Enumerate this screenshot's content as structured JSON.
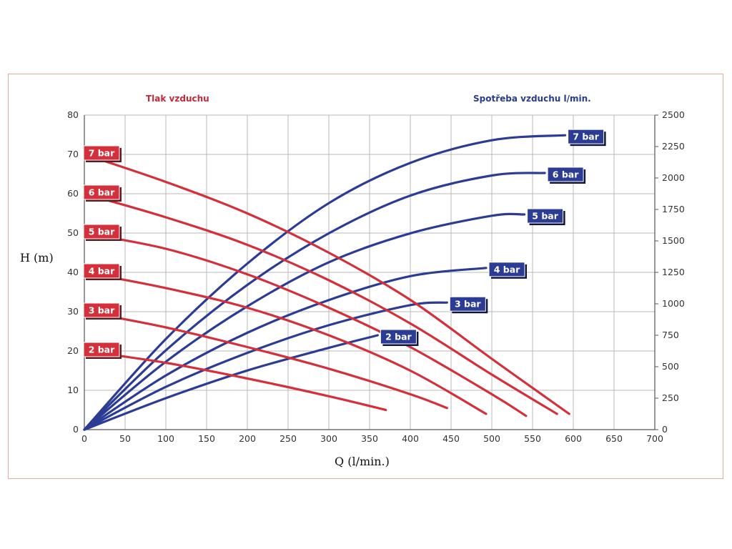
{
  "chart_data": {
    "type": "line",
    "left_axis_title": "Tlak vzduchu",
    "right_axis_title": "Spotřeba vzduchu l/min.",
    "xlabel": "Q (l/min.)",
    "ylabel": "H (m)",
    "xlim": [
      0,
      700
    ],
    "ylim": [
      0,
      80
    ],
    "y2lim": [
      0,
      2500
    ],
    "x_ticks": [
      "0",
      "50",
      "100",
      "150",
      "200",
      "250",
      "300",
      "350",
      "400",
      "450",
      "500",
      "550",
      "600",
      "650",
      "700"
    ],
    "y_ticks": [
      "0",
      "10",
      "20",
      "30",
      "40",
      "50",
      "60",
      "70",
      "80"
    ],
    "y2_ticks": [
      "0",
      "250",
      "500",
      "750",
      "1000",
      "1250",
      "1500",
      "1750",
      "2000",
      "2250",
      "2500"
    ],
    "grid": true,
    "colors": {
      "head": "#d4303c",
      "air": "#2c3c94",
      "grid": "#b8b8b8"
    },
    "head_series": [
      {
        "name": "7 bar",
        "x": [
          0,
          100,
          200,
          300,
          400,
          500,
          595
        ],
        "y": [
          70,
          63,
          55,
          45,
          33,
          18,
          4
        ]
      },
      {
        "name": "6 bar",
        "x": [
          0,
          100,
          200,
          300,
          400,
          500,
          580
        ],
        "y": [
          60,
          54,
          47,
          38,
          27,
          14,
          4
        ]
      },
      {
        "name": "5 bar",
        "x": [
          0,
          100,
          200,
          300,
          400,
          500,
          542
        ],
        "y": [
          50,
          46,
          39.5,
          31,
          21,
          9,
          3.5
        ]
      },
      {
        "name": "4 bar",
        "x": [
          0,
          100,
          200,
          300,
          400,
          493
        ],
        "y": [
          40,
          36,
          31,
          24,
          15,
          4
        ]
      },
      {
        "name": "3 bar",
        "x": [
          0,
          100,
          200,
          300,
          400,
          445
        ],
        "y": [
          30,
          26,
          21,
          15.5,
          9,
          5.5
        ]
      },
      {
        "name": "2 bar",
        "x": [
          0,
          100,
          200,
          300,
          370
        ],
        "y": [
          20,
          17,
          13,
          8.5,
          5
        ]
      }
    ],
    "air_series": [
      {
        "name": "7 bar",
        "x": [
          0,
          100,
          200,
          300,
          400,
          500,
          590
        ],
        "y2": [
          0,
          720,
          1320,
          1800,
          2120,
          2300,
          2340
        ]
      },
      {
        "name": "6 bar",
        "x": [
          0,
          100,
          200,
          300,
          400,
          500,
          565
        ],
        "y2": [
          0,
          630,
          1150,
          1560,
          1860,
          2020,
          2040
        ]
      },
      {
        "name": "5 bar",
        "x": [
          0,
          100,
          200,
          300,
          400,
          500,
          540
        ],
        "y2": [
          0,
          540,
          980,
          1330,
          1560,
          1700,
          1710
        ]
      },
      {
        "name": "4 bar",
        "x": [
          0,
          100,
          200,
          300,
          400,
          493
        ],
        "y2": [
          0,
          430,
          770,
          1030,
          1220,
          1285
        ]
      },
      {
        "name": "3 bar",
        "x": [
          0,
          100,
          200,
          300,
          400,
          445
        ],
        "y2": [
          0,
          340,
          610,
          830,
          990,
          1010
        ]
      },
      {
        "name": "2 bar",
        "x": [
          0,
          100,
          200,
          300,
          360
        ],
        "y2": [
          0,
          250,
          470,
          650,
          750
        ]
      }
    ]
  }
}
